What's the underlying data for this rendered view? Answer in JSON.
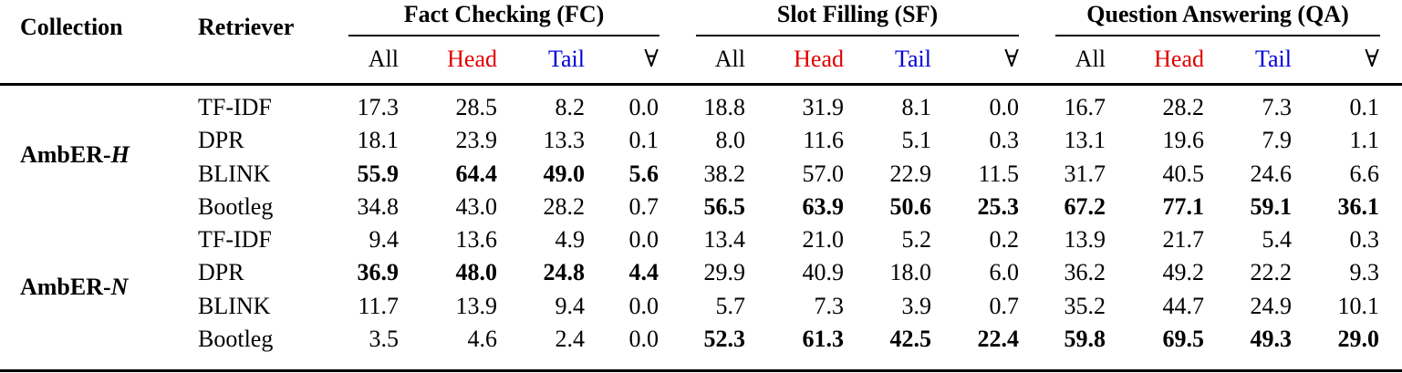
{
  "table": {
    "headers": {
      "collection": "Collection",
      "retriever": "Retriever",
      "groups": [
        {
          "label": "Fact Checking (FC)"
        },
        {
          "label": "Slot Filling (SF)"
        },
        {
          "label": "Question Answering (QA)"
        }
      ],
      "subcolumns": [
        "All",
        "Head",
        "Tail",
        "∀"
      ]
    },
    "colors": {
      "head": "#e00000",
      "tail": "#0000d8"
    },
    "sections": [
      {
        "collection_prefix": "AmbER-",
        "collection_suffix": "H",
        "rows": [
          {
            "retriever": "TF-IDF",
            "values": [
              "17.3",
              "28.5",
              "8.2",
              "0.0",
              "18.8",
              "31.9",
              "8.1",
              "0.0",
              "16.7",
              "28.2",
              "7.3",
              "0.1"
            ],
            "bold": [
              false,
              false,
              false,
              false,
              false,
              false,
              false,
              false,
              false,
              false,
              false,
              false
            ]
          },
          {
            "retriever": "DPR",
            "values": [
              "18.1",
              "23.9",
              "13.3",
              "0.1",
              "8.0",
              "11.6",
              "5.1",
              "0.3",
              "13.1",
              "19.6",
              "7.9",
              "1.1"
            ],
            "bold": [
              false,
              false,
              false,
              false,
              false,
              false,
              false,
              false,
              false,
              false,
              false,
              false
            ]
          },
          {
            "retriever": "BLINK",
            "values": [
              "55.9",
              "64.4",
              "49.0",
              "5.6",
              "38.2",
              "57.0",
              "22.9",
              "11.5",
              "31.7",
              "40.5",
              "24.6",
              "6.6"
            ],
            "bold": [
              true,
              true,
              true,
              true,
              false,
              false,
              false,
              false,
              false,
              false,
              false,
              false
            ]
          },
          {
            "retriever": "Bootleg",
            "values": [
              "34.8",
              "43.0",
              "28.2",
              "0.7",
              "56.5",
              "63.9",
              "50.6",
              "25.3",
              "67.2",
              "77.1",
              "59.1",
              "36.1"
            ],
            "bold": [
              false,
              false,
              false,
              false,
              true,
              true,
              true,
              true,
              true,
              true,
              true,
              true
            ]
          }
        ]
      },
      {
        "collection_prefix": "AmbER-",
        "collection_suffix": "N",
        "rows": [
          {
            "retriever": "TF-IDF",
            "values": [
              "9.4",
              "13.6",
              "4.9",
              "0.0",
              "13.4",
              "21.0",
              "5.2",
              "0.2",
              "13.9",
              "21.7",
              "5.4",
              "0.3"
            ],
            "bold": [
              false,
              false,
              false,
              false,
              false,
              false,
              false,
              false,
              false,
              false,
              false,
              false
            ]
          },
          {
            "retriever": "DPR",
            "values": [
              "36.9",
              "48.0",
              "24.8",
              "4.4",
              "29.9",
              "40.9",
              "18.0",
              "6.0",
              "36.2",
              "49.2",
              "22.2",
              "9.3"
            ],
            "bold": [
              true,
              true,
              true,
              true,
              false,
              false,
              false,
              false,
              false,
              false,
              false,
              false
            ]
          },
          {
            "retriever": "BLINK",
            "values": [
              "11.7",
              "13.9",
              "9.4",
              "0.0",
              "5.7",
              "7.3",
              "3.9",
              "0.7",
              "35.2",
              "44.7",
              "24.9",
              "10.1"
            ],
            "bold": [
              false,
              false,
              false,
              false,
              false,
              false,
              false,
              false,
              false,
              false,
              false,
              false
            ]
          },
          {
            "retriever": "Bootleg",
            "values": [
              "3.5",
              "4.6",
              "2.4",
              "0.0",
              "52.3",
              "61.3",
              "42.5",
              "22.4",
              "59.8",
              "69.5",
              "49.3",
              "29.0"
            ],
            "bold": [
              false,
              false,
              false,
              false,
              true,
              true,
              true,
              true,
              true,
              true,
              true,
              true
            ]
          }
        ]
      }
    ]
  }
}
